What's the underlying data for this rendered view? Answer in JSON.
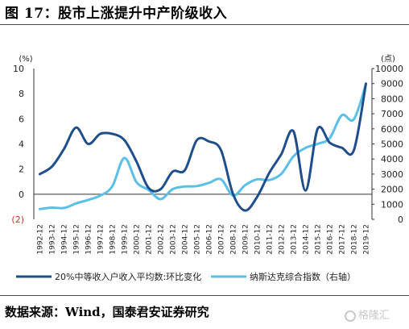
{
  "header": {
    "title": "图 17：股市上涨提升中产阶级收入"
  },
  "footer": {
    "source": "数据来源：Wind，国泰君安证券研究",
    "watermark": "格隆汇"
  },
  "chart_data": {
    "type": "line",
    "left_unit": "(%)",
    "right_unit": "(点)",
    "left_ticks": [
      "10",
      "8",
      "6",
      "4",
      "2",
      "0",
      "(2)"
    ],
    "right_ticks": [
      "10000",
      "9000",
      "8000",
      "7000",
      "6000",
      "5000",
      "4000",
      "3000",
      "2000",
      "1000",
      "0"
    ],
    "ylim_left": [
      -2,
      10
    ],
    "ylim_right": [
      0,
      10000
    ],
    "categories": [
      "1992-12",
      "1993-12",
      "1994-12",
      "1995-12",
      "1996-12",
      "1997-12",
      "1998-12",
      "1999-12",
      "2000-12",
      "2001-12",
      "2002-12",
      "2003-12",
      "2004-12",
      "2005-12",
      "2006-12",
      "2007-12",
      "2008-12",
      "2009-12",
      "2010-12",
      "2011-12",
      "2012-12",
      "2013-12",
      "2014-12",
      "2015-12",
      "2016-12",
      "2017-12",
      "2018-12",
      "2019-12"
    ],
    "series": [
      {
        "name": "20%中等收入户收入平均数:环比变化",
        "axis": "left",
        "color": "#1f4e8c",
        "values": [
          1.6,
          2.2,
          3.6,
          5.3,
          4.0,
          4.8,
          4.8,
          4.3,
          2.6,
          0.5,
          0.4,
          1.8,
          1.9,
          4.3,
          4.2,
          3.5,
          0.0,
          -1.3,
          -0.2,
          1.7,
          3.2,
          5.0,
          0.3,
          5.2,
          4.1,
          3.7,
          3.5,
          8.8
        ]
      },
      {
        "name": "纳斯达克综合指数（右轴）",
        "axis": "right",
        "color": "#5bc0e8",
        "values": [
          677,
          777,
          752,
          1052,
          1291,
          1570,
          2193,
          4069,
          2471,
          1950,
          1336,
          2003,
          2175,
          2205,
          2415,
          2652,
          1577,
          2269,
          2653,
          2605,
          3020,
          4177,
          4736,
          5007,
          5383,
          6903,
          6635,
          8973
        ]
      }
    ]
  }
}
